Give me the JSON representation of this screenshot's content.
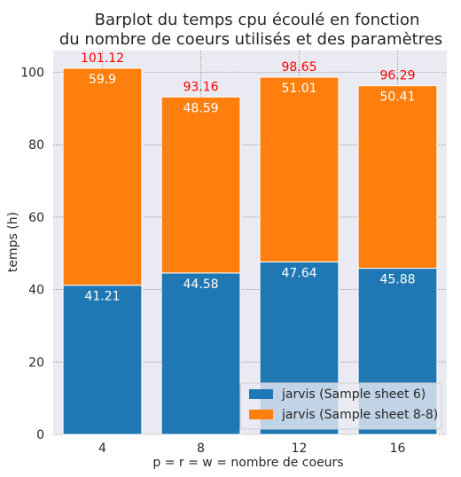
{
  "chart_data": {
    "type": "bar",
    "stacked": true,
    "title": [
      "Barplot du temps cpu écoulé en fonction",
      "du nombre de coeurs utilisés et des paramètres"
    ],
    "xlabel": "p = r = w = nombre de coeurs",
    "ylabel": "temps (h)",
    "categories": [
      "4",
      "8",
      "12",
      "16"
    ],
    "ylim": [
      0,
      106
    ],
    "yticks": [
      0,
      20,
      40,
      60,
      80,
      100
    ],
    "grid": true,
    "legend_position": "bottom-right",
    "series": [
      {
        "name": "jarvis (Sample sheet 6)",
        "color": "#1f77b4",
        "values": [
          41.21,
          44.58,
          47.64,
          45.88
        ],
        "labels": [
          "41.21",
          "44.58",
          "47.64",
          "45.88"
        ]
      },
      {
        "name": "jarvis (Sample sheet 8-8)",
        "color": "#ff7f0e",
        "values": [
          59.9,
          48.59,
          51.01,
          50.41
        ],
        "labels": [
          "59.9",
          "48.59",
          "51.01",
          "50.41"
        ]
      }
    ],
    "totals": [
      "101.12",
      "93.16",
      "98.65",
      "96.29"
    ],
    "total_color": "#ff0000",
    "background_color": "#eaeaf2"
  }
}
